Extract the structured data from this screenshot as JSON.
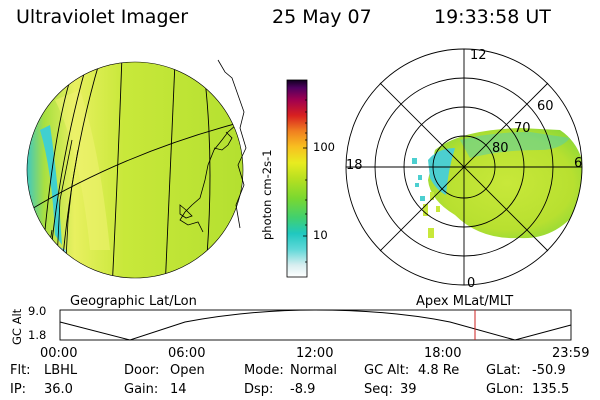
{
  "header": {
    "instrument": "Ultraviolet Imager",
    "date": "25 May 07",
    "time": "19:33:58 UT"
  },
  "colorbar": {
    "label": "photon cm-2s-1",
    "ticks": [
      "100",
      "10"
    ]
  },
  "left_panel": {
    "caption": "Geographic Lat/Lon"
  },
  "right_panel": {
    "caption": "Apex MLat/MLT",
    "mlt_labels": {
      "top": "12",
      "left": "18",
      "right": "6",
      "bottom": "0"
    },
    "lat_labels": [
      "60",
      "70",
      "80"
    ]
  },
  "altitude_plot": {
    "ylabel": "GC Alt",
    "yticks": [
      "9.0",
      "1.8"
    ],
    "xticks": [
      "00:00",
      "06:00",
      "12:00",
      "18:00",
      "23:59"
    ],
    "current_time_marker": "19:33:58"
  },
  "status": {
    "flt_label": "Flt:",
    "flt_value": "LBHL",
    "ip_label": "IP:",
    "ip_value": "36.0",
    "door_label": "Door:",
    "door_value": "Open",
    "gain_label": "Gain:",
    "gain_value": "14",
    "mode_label": "Mode:",
    "mode_value": "Normal",
    "dsp_label": "Dsp:",
    "dsp_value": "-8.9",
    "gcalt_label": "GC Alt:",
    "gcalt_value": "4.8 Re",
    "seq_label": "Seq:",
    "seq_value": "39",
    "glat_label": "GLat:",
    "glat_value": "-50.9",
    "glon_label": "GLon:",
    "glon_value": "135.5"
  },
  "colors": {
    "disk_fill": "#c8e83a",
    "dayglow": "#e8f060",
    "limb_cyan": "#40d0d0",
    "marker": "#cc2222"
  }
}
